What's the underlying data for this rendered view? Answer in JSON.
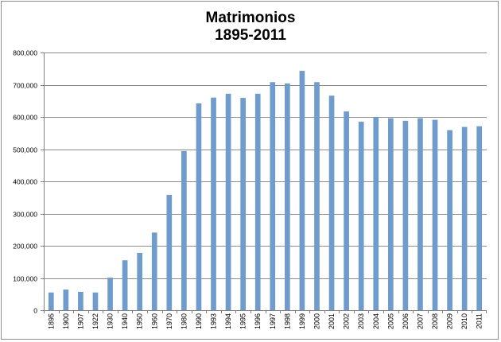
{
  "chart_data": {
    "type": "bar",
    "title": "Matrimonios",
    "subtitle": "1895-2011",
    "xlabel": "",
    "ylabel": "",
    "ylim": [
      0,
      800000
    ],
    "y_ticks": [
      "0",
      "100,000",
      "200,000",
      "300,000",
      "400,000",
      "500,000",
      "600,000",
      "700,000",
      "800,000"
    ],
    "y_tick_values": [
      0,
      100000,
      200000,
      300000,
      400000,
      500000,
      600000,
      700000,
      800000
    ],
    "grid": true,
    "legend": "none",
    "bar_color": "#6f9bcd",
    "categories": [
      "1895",
      "1900",
      "1907",
      "1922",
      "1930",
      "1940",
      "1950",
      "1960",
      "1970",
      "1980",
      "1990",
      "1993",
      "1994",
      "1995",
      "1996",
      "1997",
      "1998",
      "1999",
      "2000",
      "2001",
      "2002",
      "2003",
      "2004",
      "2005",
      "2006",
      "2007",
      "2008",
      "2009",
      "2010",
      "2011"
    ],
    "values": [
      55000,
      64000,
      57000,
      55000,
      101000,
      155000,
      178000,
      241000,
      358000,
      494000,
      642000,
      660000,
      672000,
      659000,
      672000,
      708000,
      704000,
      743000,
      708000,
      666000,
      617000,
      585000,
      600000,
      596000,
      588000,
      596000,
      591000,
      559000,
      569000,
      571000
    ]
  }
}
